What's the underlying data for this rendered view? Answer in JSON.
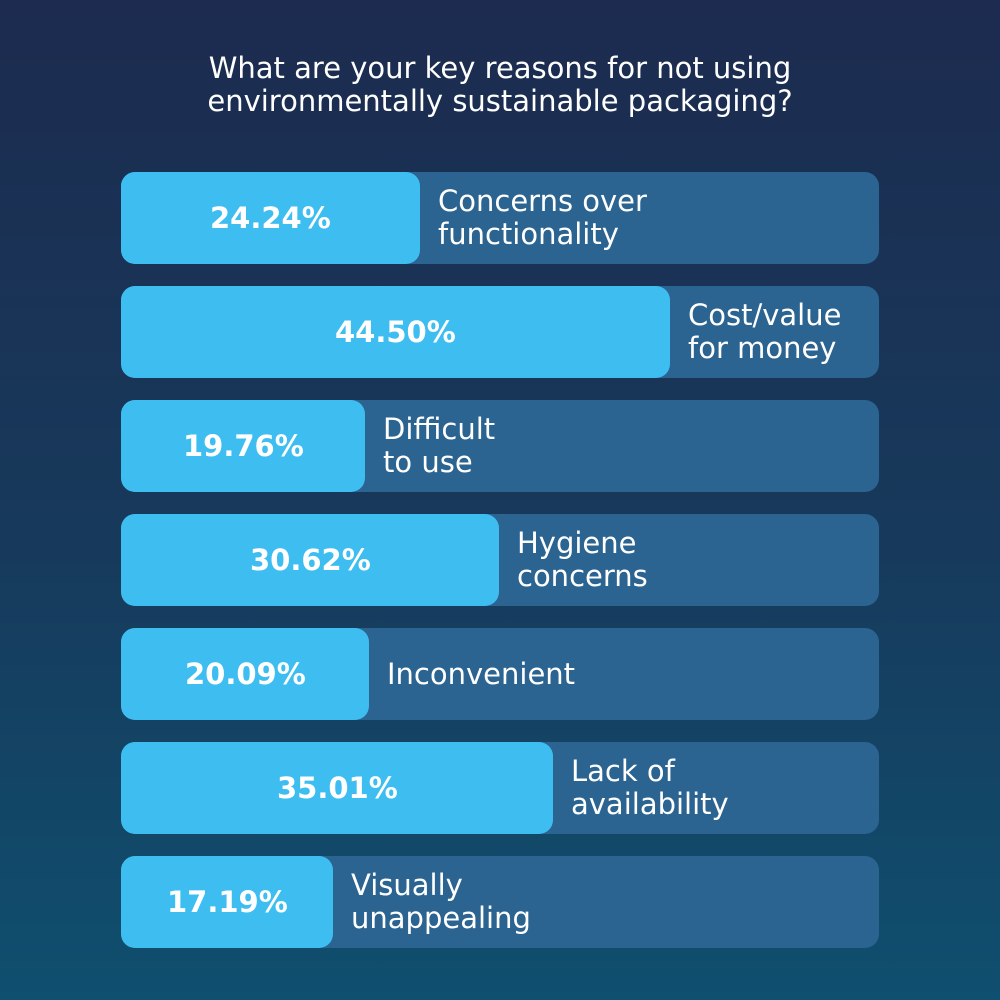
{
  "title_lines": [
    "What are your key reasons for not using",
    "environmentally sustainable packaging?"
  ],
  "chart_data": {
    "type": "bar",
    "orientation": "horizontal",
    "title": "What are your key reasons for not using environmentally sustainable packaging?",
    "xlim": [
      0,
      61.4
    ],
    "categories": [
      "Concerns over functionality",
      "Cost/value for money",
      "Difficult to use",
      "Hygiene concerns",
      "Inconvenient",
      "Lack of availability",
      "Visually unappealing"
    ],
    "values": [
      24.24,
      44.5,
      19.76,
      30.62,
      20.09,
      35.01,
      17.19
    ],
    "value_labels": [
      "24.24%",
      "44.50%",
      "19.76%",
      "30.62%",
      "20.09%",
      "35.01%",
      "17.19%"
    ],
    "label_lines": [
      [
        "Concerns over",
        "functionality"
      ],
      [
        "Cost/value",
        "for money"
      ],
      [
        "Difficult",
        "to use"
      ],
      [
        "Hygiene",
        "concerns"
      ],
      [
        "Inconvenient"
      ],
      [
        "Lack of",
        "availability"
      ],
      [
        "Visually",
        "unappealing"
      ]
    ],
    "colors": {
      "fill": "#3ebdf0",
      "track": "#2b6391",
      "text": "#ffffff"
    }
  }
}
